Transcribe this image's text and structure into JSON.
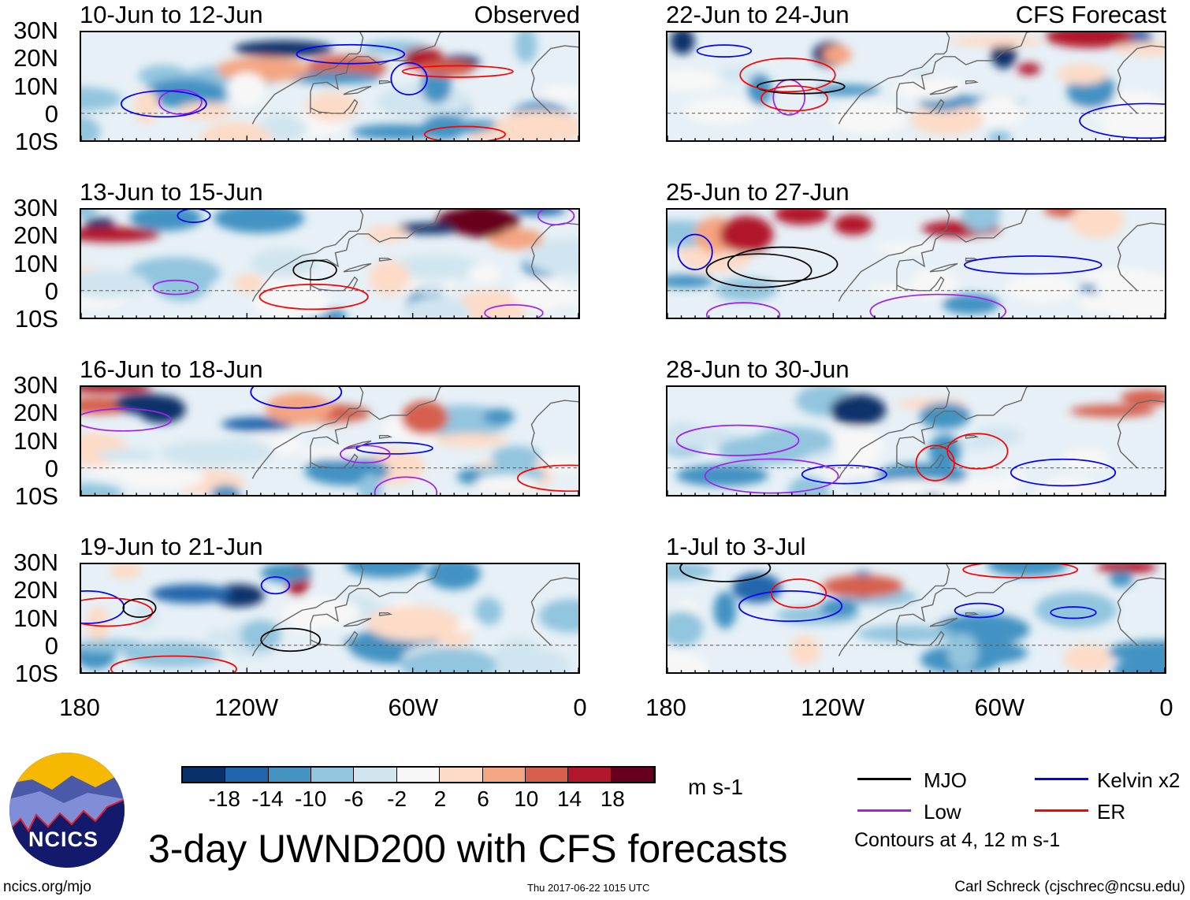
{
  "panels_left": [
    {
      "title": "10-Jun to 12-Jun",
      "tag": "Observed"
    },
    {
      "title": "13-Jun to 15-Jun"
    },
    {
      "title": "16-Jun to 18-Jun"
    },
    {
      "title": "19-Jun to 21-Jun"
    }
  ],
  "panels_right": [
    {
      "title": "22-Jun to 24-Jun",
      "tag": "CFS Forecast"
    },
    {
      "title": "25-Jun to 27-Jun"
    },
    {
      "title": "28-Jun to 30-Jun"
    },
    {
      "title": "1-Jul to 3-Jul"
    }
  ],
  "lat_labels": [
    "30N",
    "20N",
    "10N",
    "0",
    "10S"
  ],
  "lon_labels": [
    "180",
    "120W",
    "60W",
    "0"
  ],
  "colorbar": {
    "ticks": [
      "-18",
      "-14",
      "-10",
      "-6",
      "-2",
      "2",
      "6",
      "10",
      "14",
      "18"
    ],
    "colors": [
      "#08306b",
      "#2166ac",
      "#4393c3",
      "#92c5de",
      "#d1e5f0",
      "#f7f7f7",
      "#fddbc7",
      "#f4a582",
      "#d6604d",
      "#b2182b",
      "#67001f"
    ],
    "units": "m s-1"
  },
  "legend": {
    "items": [
      {
        "label": "MJO",
        "color": "#000000"
      },
      {
        "label": "Kelvin x2",
        "color": "#0000ff"
      },
      {
        "label": "Low",
        "color": "#a020f0"
      },
      {
        "label": "ER",
        "color": "#ff0000"
      }
    ],
    "note": "Contours at 4, 12 m s-1"
  },
  "title": "3-day UWND200 with CFS forecasts",
  "logo_text": "NCICS",
  "footer": {
    "url": "ncics.org/mjo",
    "timestamp": "Thu 2017-06-22 1015 UTC",
    "author": "Carl Schreck (cjschrec@ncsu.edu)"
  }
}
